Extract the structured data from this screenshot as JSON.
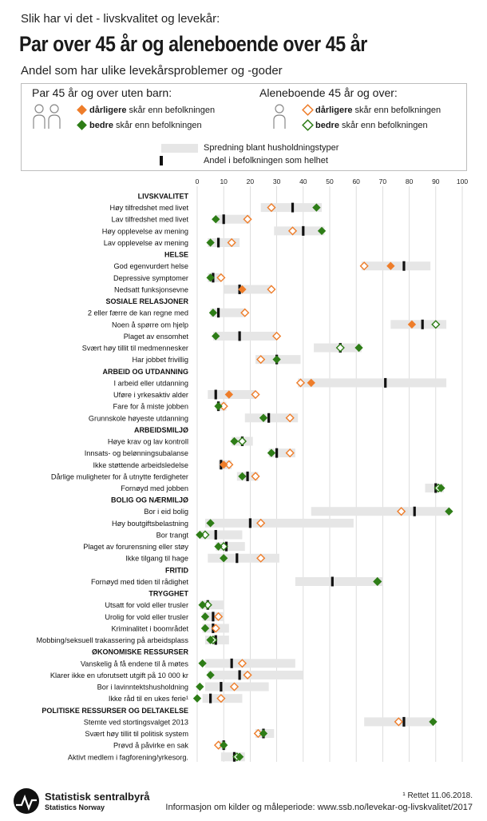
{
  "header": {
    "supertitle": "Slik har vi det - livskvalitet og levekår:",
    "title": "Par over 45 år og aleneboende over 45 år",
    "subtitle": "Andel som har ulike levekårsproblemer og -goder"
  },
  "legend": {
    "group1_heading": "Par 45 år og over uten barn:",
    "group1_worse_bold": "dårligere",
    "group1_worse_rest": " skår enn befolkningen",
    "group1_better_bold": "bedre",
    "group1_better_rest": " skår enn befolkningen",
    "group2_heading": "Aleneboende 45 år og over:",
    "group2_worse_bold": "dårligere",
    "group2_worse_rest": " skår enn befolkningen",
    "group2_better_bold": "bedre",
    "group2_better_rest": " skår enn befolkningen",
    "spread_label": "Spredning blant husholdningstyper",
    "population_label": "Andel i befolkningen som helhet"
  },
  "colors": {
    "worse": "#ee7d2a",
    "better": "#2e7d17",
    "spread": "#e6e6e6",
    "population": "#111111",
    "grid": "#d6d6d6"
  },
  "footer": {
    "note": "¹ Rettet 11.06.2018.",
    "source": "Informasjon om kilder og måleperiode: www.ssb.no/levekar-og-livskvalitet/2017",
    "logo_name": "Statistisk sentralbyrå",
    "logo_sub": "Statistics Norway"
  },
  "chart_data": {
    "type": "dot-range",
    "xlim": [
      0,
      100
    ],
    "ticks": [
      0,
      10,
      20,
      30,
      40,
      50,
      60,
      70,
      80,
      90,
      100
    ],
    "series_names": [
      "Par 45 år og over uten barn",
      "Aleneboende 45 år og over",
      "Andel i befolkningen som helhet"
    ],
    "rows": [
      {
        "kind": "section",
        "label": "LIVSKVALITET"
      },
      {
        "kind": "item",
        "label": "Høy tilfredshet med livet",
        "lo": 24,
        "hi": 47,
        "pop": 36,
        "par": 45,
        "alene": 28
      },
      {
        "kind": "item",
        "label": "Lav tilfredshet med livet",
        "lo": 7,
        "hi": 20,
        "pop": 10,
        "par": 7,
        "alene": 19
      },
      {
        "kind": "item",
        "label": "Høy opplevelse av mening",
        "lo": 29,
        "hi": 48,
        "pop": 40,
        "par": 47,
        "alene": 36
      },
      {
        "kind": "item",
        "label": "Lav opplevelse av mening",
        "lo": 4,
        "hi": 16,
        "pop": 8,
        "par": 5,
        "alene": 13
      },
      {
        "kind": "section",
        "label": "HELSE"
      },
      {
        "kind": "item",
        "label": "God egenvurdert helse",
        "lo": 62,
        "hi": 88,
        "pop": 78,
        "par": 73,
        "alene": 63
      },
      {
        "kind": "item",
        "label": "Depressive symptomer",
        "lo": 4,
        "hi": 9,
        "pop": 6,
        "par": 5,
        "alene": 9
      },
      {
        "kind": "item",
        "label": "Nedsatt funksjonsevne",
        "lo": 10,
        "hi": 28,
        "pop": 16,
        "par": 17,
        "alene": 28
      },
      {
        "kind": "section",
        "label": "SOSIALE RELASJONER"
      },
      {
        "kind": "item",
        "label": "2 eller færre de kan regne med",
        "lo": 5,
        "hi": 18,
        "pop": 8,
        "par": 6,
        "alene": 18
      },
      {
        "kind": "item",
        "label": "Noen  å spørre om hjelp",
        "lo": 73,
        "hi": 94,
        "pop": 85,
        "par": 81,
        "alene": 90
      },
      {
        "kind": "item",
        "label": "Plaget av ensomhet",
        "lo": 6,
        "hi": 30,
        "pop": 16,
        "par": 7,
        "alene": 30
      },
      {
        "kind": "item",
        "label": "Svært høy tillit til medmennesker",
        "lo": 44,
        "hi": 62,
        "pop": 54,
        "par": 61,
        "alene": 54
      },
      {
        "kind": "item",
        "label": "Har jobbet frivillig",
        "lo": 22,
        "hi": 39,
        "pop": 30,
        "par": 30,
        "alene": 24
      },
      {
        "kind": "section",
        "label": "ARBEID OG UTDANNING"
      },
      {
        "kind": "item",
        "label": "I arbeid eller utdanning",
        "lo": 38,
        "hi": 94,
        "pop": 71,
        "par": 43,
        "alene": 39
      },
      {
        "kind": "item",
        "label": "Uføre i yrkesaktiv alder",
        "lo": 4,
        "hi": 22,
        "pop": 7,
        "par": 12,
        "alene": 22
      },
      {
        "kind": "item",
        "label": "Fare for å miste jobben",
        "lo": 7,
        "hi": 11,
        "pop": 8,
        "par": 8,
        "alene": 10
      },
      {
        "kind": "item",
        "label": "Grunnskole høyeste utdanning",
        "lo": 18,
        "hi": 38,
        "pop": 27,
        "par": 25,
        "alene": 35
      },
      {
        "kind": "section",
        "label": "ARBEIDSMILJØ"
      },
      {
        "kind": "item",
        "label": "Høye krav og lav kontroll",
        "lo": 13,
        "hi": 21,
        "pop": 17,
        "par": 14,
        "alene": 17
      },
      {
        "kind": "item",
        "label": "Innsats- og belønningsubalanse",
        "lo": 27,
        "hi": 37,
        "pop": 30,
        "par": 28,
        "alene": 35
      },
      {
        "kind": "item",
        "label": "Ikke støttende arbeidsledelse",
        "lo": 8,
        "hi": 13,
        "pop": 9,
        "par": 10,
        "alene": 12
      },
      {
        "kind": "item",
        "label": "Dårlige muligheter for å utnytte ferdigheter",
        "lo": 15,
        "hi": 23,
        "pop": 19,
        "par": 17,
        "alene": 22
      },
      {
        "kind": "item",
        "label": "Fornøyd med jobben",
        "lo": 86,
        "hi": 93,
        "pop": 90,
        "par": 92,
        "alene": 91
      },
      {
        "kind": "section",
        "label": "BOLIG OG NÆRMILJØ"
      },
      {
        "kind": "item",
        "label": "Bor i eid bolig",
        "lo": 43,
        "hi": 95,
        "pop": 82,
        "par": 95,
        "alene": 77
      },
      {
        "kind": "item",
        "label": "Høy boutgiftsbelastning",
        "lo": 3,
        "hi": 59,
        "pop": 20,
        "par": 5,
        "alene": 24
      },
      {
        "kind": "item",
        "label": "Bor trangt",
        "lo": 1,
        "hi": 17,
        "pop": 7,
        "par": 1,
        "alene": 3
      },
      {
        "kind": "item",
        "label": "Plaget av forurensning eller støy",
        "lo": 7,
        "hi": 18,
        "pop": 11,
        "par": 8,
        "alene": 10
      },
      {
        "kind": "item",
        "label": "Ikke tilgang til hage",
        "lo": 4,
        "hi": 31,
        "pop": 15,
        "par": 10,
        "alene": 24
      },
      {
        "kind": "section",
        "label": "FRITID"
      },
      {
        "kind": "item",
        "label": "Fornøyd med tiden til rådighet",
        "lo": 37,
        "hi": 70,
        "pop": 51,
        "par": 68,
        "alene": 68
      },
      {
        "kind": "section",
        "label": "TRYGGHET"
      },
      {
        "kind": "item",
        "label": "Utsatt for vold eller trusler",
        "lo": 1,
        "hi": 10,
        "pop": 4,
        "par": 2,
        "alene": 4
      },
      {
        "kind": "item",
        "label": "Urolig for vold eller trusler",
        "lo": 2,
        "hi": 10,
        "pop": 6,
        "par": 3,
        "alene": 8
      },
      {
        "kind": "item",
        "label": "Kriminalitet i boområdet",
        "lo": 2,
        "hi": 12,
        "pop": 6,
        "par": 3,
        "alene": 7
      },
      {
        "kind": "item",
        "label": "Mobbing/seksuell trakassering på arbeidsplass",
        "lo": 3,
        "hi": 12,
        "pop": 7,
        "par": 5,
        "alene": 6
      },
      {
        "kind": "section",
        "label": "ØKONOMISKE RESSURSER"
      },
      {
        "kind": "item",
        "label": "Vanskelig å få endene til å møtes",
        "lo": 3,
        "hi": 37,
        "pop": 13,
        "par": 2,
        "alene": 17
      },
      {
        "kind": "item",
        "label": "Klarer ikke en uforutsett utgift på 10 000 kr",
        "lo": 4,
        "hi": 40,
        "pop": 16,
        "par": 5,
        "alene": 19
      },
      {
        "kind": "item",
        "label": "Bor i lavinntektshusholdning",
        "lo": 3,
        "hi": 27,
        "pop": 9,
        "par": 1,
        "alene": 14
      },
      {
        "kind": "item",
        "label": "Ikke råd til en ukes ferie¹",
        "lo": 2,
        "hi": 17,
        "pop": 5,
        "par": 0,
        "alene": 9
      },
      {
        "kind": "section",
        "label": "POLITISKE RESSURSER OG DELTAKELSE"
      },
      {
        "kind": "item",
        "label": "Stemte ved stortingsvalget 2013",
        "lo": 63,
        "hi": 89,
        "pop": 78,
        "par": 89,
        "alene": 76
      },
      {
        "kind": "item",
        "label": "Svært høy tillit til politisk system",
        "lo": 22,
        "hi": 29,
        "pop": 25,
        "par": 25,
        "alene": 23
      },
      {
        "kind": "item",
        "label": "Prøvd å påvirke en sak",
        "lo": 8,
        "hi": 11,
        "pop": 10,
        "par": 10,
        "alene": 8
      },
      {
        "kind": "item",
        "label": "Aktivt medlem i fagforening/yrkesorg.",
        "lo": 9,
        "hi": 18,
        "pop": 14,
        "par": 16,
        "alene": 15
      }
    ]
  }
}
